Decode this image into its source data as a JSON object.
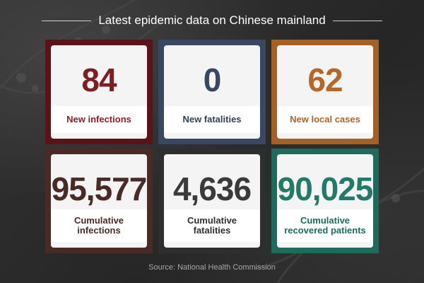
{
  "title": "Latest epidemic data on Chinese mainland",
  "cards": [
    {
      "value": "84",
      "label": "New infections",
      "frame": "#5a1418",
      "value_color": "#7d1e22",
      "label_color": "#8c1f24"
    },
    {
      "value": "0",
      "label": "New fatalities",
      "frame": "#3a4763",
      "value_color": "#3a4763",
      "label_color": "#33405a"
    },
    {
      "value": "62",
      "label": "New local cases",
      "frame": "#a56026",
      "value_color": "#b56727",
      "label_color": "#b36325"
    },
    {
      "value": "95,577",
      "label_line1": "Cumulative",
      "label_line2": "infections",
      "frame": "#4a2a24",
      "value_color": "#4a2a24",
      "label_color": "#4a2a24"
    },
    {
      "value": "4,636",
      "label_line1": "Cumulative",
      "label_line2": "fatalities",
      "frame": "#2e2e2e",
      "value_color": "#3a3a3a",
      "label_color": "#2f2f2f"
    },
    {
      "value": "90,025",
      "label_line1": "Cumulative",
      "label_line2": "recovered patients",
      "frame": "#1f6b5b",
      "value_color": "#237a68",
      "label_color": "#1f6b5b"
    }
  ],
  "source": "Source: National Health Commission"
}
